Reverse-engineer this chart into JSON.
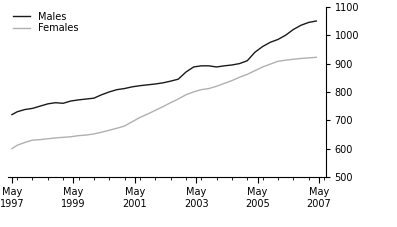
{
  "title": "",
  "ylabel_right": "$",
  "ylim": [
    500,
    1100
  ],
  "yticks": [
    500,
    600,
    700,
    800,
    900,
    1000,
    1100
  ],
  "xtick_years": [
    1997,
    1999,
    2001,
    2003,
    2005,
    2007
  ],
  "line_colors": [
    "#1a1a1a",
    "#b0b0b0"
  ],
  "legend_labels": [
    "Males",
    "Females"
  ],
  "males_x": [
    1997.33,
    1997.5,
    1997.75,
    1998.0,
    1998.25,
    1998.5,
    1998.75,
    1999.0,
    1999.25,
    1999.5,
    1999.75,
    2000.0,
    2000.25,
    2000.5,
    2000.75,
    2001.0,
    2001.25,
    2001.5,
    2001.75,
    2002.0,
    2002.25,
    2002.5,
    2002.75,
    2003.0,
    2003.25,
    2003.5,
    2003.75,
    2004.0,
    2004.25,
    2004.5,
    2004.75,
    2005.0,
    2005.25,
    2005.5,
    2005.75,
    2006.0,
    2006.25,
    2006.5,
    2006.75,
    2007.0,
    2007.25
  ],
  "males_y": [
    720,
    730,
    738,
    742,
    750,
    758,
    762,
    760,
    768,
    772,
    775,
    778,
    790,
    800,
    808,
    812,
    818,
    822,
    825,
    828,
    832,
    838,
    845,
    870,
    888,
    892,
    892,
    888,
    892,
    895,
    900,
    910,
    940,
    960,
    975,
    985,
    1000,
    1020,
    1035,
    1045,
    1050
  ],
  "females_x": [
    1997.33,
    1997.5,
    1997.75,
    1998.0,
    1998.25,
    1998.5,
    1998.75,
    1999.0,
    1999.25,
    1999.5,
    1999.75,
    2000.0,
    2000.25,
    2000.5,
    2000.75,
    2001.0,
    2001.25,
    2001.5,
    2001.75,
    2002.0,
    2002.25,
    2002.5,
    2002.75,
    2003.0,
    2003.25,
    2003.5,
    2003.75,
    2004.0,
    2004.25,
    2004.5,
    2004.75,
    2005.0,
    2005.25,
    2005.5,
    2005.75,
    2006.0,
    2006.25,
    2006.5,
    2006.75,
    2007.0,
    2007.25
  ],
  "females_y": [
    600,
    612,
    622,
    630,
    632,
    635,
    638,
    640,
    642,
    646,
    648,
    652,
    658,
    665,
    672,
    680,
    695,
    710,
    722,
    735,
    748,
    762,
    775,
    790,
    800,
    808,
    812,
    820,
    830,
    840,
    852,
    862,
    875,
    888,
    898,
    908,
    912,
    915,
    918,
    920,
    922
  ],
  "line_width": 1.0,
  "background_color": "#ffffff",
  "spine_color": "#000000",
  "xlim": [
    1997.2,
    2007.55
  ]
}
